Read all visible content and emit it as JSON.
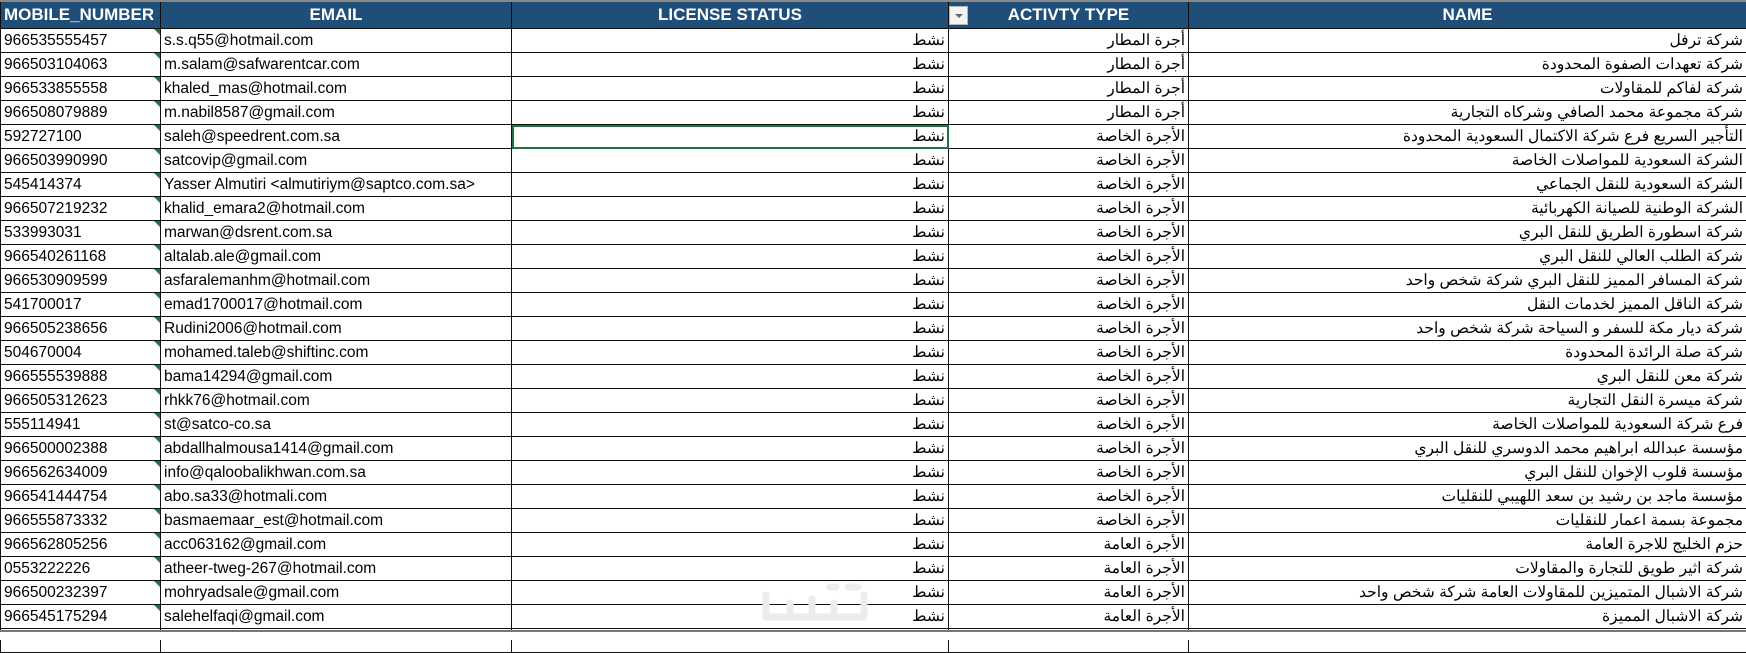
{
  "headers": {
    "mobile": "MOBILE_NUMBER",
    "email": "EMAIL",
    "license": "LICENSE STATUS",
    "activity": "ACTIVTY TYPE",
    "name": "NAME"
  },
  "colors": {
    "header_bg": "#1f4e79",
    "header_text": "#ffffff",
    "selection": "#217346",
    "text_marker": "#1e7a3a"
  },
  "watermark": "خمسات",
  "rows": [
    {
      "mobile": "966535555457",
      "email": "s.s.q55@hotmail.com",
      "license": "نشط",
      "activity": "أجرة المطار",
      "name": "شركة ترفل"
    },
    {
      "mobile": "966503104063",
      "email": "m.salam@safwarentcar.com",
      "license": "نشط",
      "activity": "أجرة المطار",
      "name": "شركة تعهدات الصفوة المحدودة"
    },
    {
      "mobile": "966533855558",
      "email": "khaled_mas@hotmail.com",
      "license": "نشط",
      "activity": "أجرة المطار",
      "name": "شركة لفاكم للمقاولات"
    },
    {
      "mobile": "966508079889",
      "email": "m.nabil8587@gmail.com",
      "license": "نشط",
      "activity": "أجرة المطار",
      "name": "شركة مجموعة محمد الصافي وشركاه التجارية"
    },
    {
      "mobile": "592727100",
      "email": "saleh@speedrent.com.sa",
      "license": "نشط",
      "activity": "الأجرة الخاصة",
      "name": "التأجير السريع فرع شركة الاكتمال السعودية المحدودة"
    },
    {
      "mobile": "966503990990",
      "email": "satcovip@gmail.com",
      "license": "نشط",
      "activity": "الأجرة الخاصة",
      "name": "الشركة السعودية للمواصلات الخاصة"
    },
    {
      "mobile": "545414374",
      "email": "Yasser Almutiri <almutiriym@saptco.com.sa>",
      "license": "نشط",
      "activity": "الأجرة الخاصة",
      "name": "الشركة السعودية للنقل الجماعي"
    },
    {
      "mobile": "966507219232",
      "email": "khalid_emara2@hotmail.com",
      "license": "نشط",
      "activity": "الأجرة الخاصة",
      "name": "الشركة الوطنية للصيانة الكهربائية"
    },
    {
      "mobile": "533993031",
      "email": "marwan@dsrent.com.sa",
      "license": "نشط",
      "activity": "الأجرة الخاصة",
      "name": "شركة اسطورة الطريق للنقل البري"
    },
    {
      "mobile": "966540261168",
      "email": "altalab.ale@gmail.com",
      "license": "نشط",
      "activity": "الأجرة الخاصة",
      "name": "شركة الطلب العالي للنقل البري"
    },
    {
      "mobile": "966530909599",
      "email": "asfaralemanhm@hotmail.com",
      "license": "نشط",
      "activity": "الأجرة الخاصة",
      "name": "شركة المسافر المميز للنقل البري شركة شخص واحد"
    },
    {
      "mobile": "541700017",
      "email": "emad1700017@hotmail.com",
      "license": "نشط",
      "activity": "الأجرة الخاصة",
      "name": "شركة الناقل المميز لخدمات النقل"
    },
    {
      "mobile": "966505238656",
      "email": "Rudini2006@hotmail.com",
      "license": "نشط",
      "activity": "الأجرة الخاصة",
      "name": "شركة ديار مكة للسفر و السياحة شركة شخص واحد"
    },
    {
      "mobile": "504670004",
      "email": "mohamed.taleb@shiftinc.com",
      "license": "نشط",
      "activity": "الأجرة الخاصة",
      "name": "شركة صلة الرائدة المحدودة"
    },
    {
      "mobile": "966555539888",
      "email": "bama14294@gmail.com",
      "license": "نشط",
      "activity": "الأجرة الخاصة",
      "name": "شركة معن للنقل البري"
    },
    {
      "mobile": "966505312623",
      "email": "rhkk76@hotmail.com",
      "license": "نشط",
      "activity": "الأجرة الخاصة",
      "name": "شركة ميسرة النقل التجارية"
    },
    {
      "mobile": "555114941",
      "email": "st@satco-co.sa",
      "license": "نشط",
      "activity": "الأجرة الخاصة",
      "name": "فرع شركة السعودية للمواصلات الخاصة"
    },
    {
      "mobile": "966500002388",
      "email": "abdallhalmousa1414@gmail.com",
      "license": "نشط",
      "activity": "الأجرة الخاصة",
      "name": "مؤسسة عبدالله ابراهيم محمد الدوسري للنقل البري"
    },
    {
      "mobile": "966562634009",
      "email": "info@qaloobalikhwan.com.sa",
      "license": "نشط",
      "activity": "الأجرة الخاصة",
      "name": "مؤسسة قلوب الإخوان للنقل البري"
    },
    {
      "mobile": "966541444754",
      "email": "abo.sa33@hotmali.com",
      "license": "نشط",
      "activity": "الأجرة الخاصة",
      "name": "مؤسسة ماجد بن رشيد بن سعد اللهيبي للنقليات"
    },
    {
      "mobile": "966555873332",
      "email": "basmaemaar_est@hotmail.com",
      "license": "نشط",
      "activity": "الأجرة الخاصة",
      "name": "مجموعة بسمة اعمار للنقليات"
    },
    {
      "mobile": "966562805256",
      "email": "acc063162@gmail.com",
      "license": "نشط",
      "activity": "الأجرة العامة",
      "name": "حزم الخليج للاجرة العامة"
    },
    {
      "mobile": "0553222226",
      "email": "atheer-tweg-267@hotmail.com",
      "license": "نشط",
      "activity": "الأجرة العامة",
      "name": "شركة اثير طويق للتجارة والمقاولات"
    },
    {
      "mobile": "966500232397",
      "email": "mohryadsale@gmail.com",
      "license": "نشط",
      "activity": "الأجرة العامة",
      "name": "شركة الاشبال المتميزين للمقاولات العامة شركة شخص واحد"
    },
    {
      "mobile": "966545175294",
      "email": "salehelfaqi@gmail.com",
      "license": "نشط",
      "activity": "الأجرة العامة",
      "name": "شركة الاشبال المميزة"
    }
  ]
}
